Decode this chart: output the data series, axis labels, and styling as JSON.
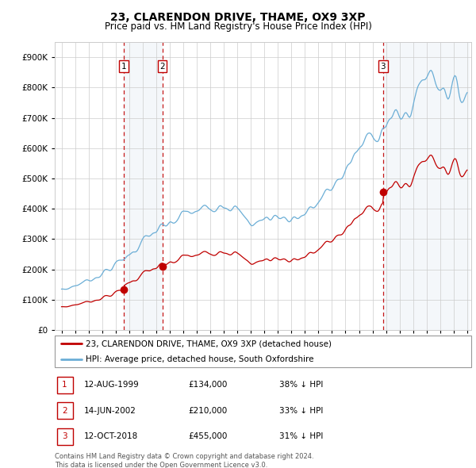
{
  "title": "23, CLARENDON DRIVE, THAME, OX9 3XP",
  "subtitle": "Price paid vs. HM Land Registry's House Price Index (HPI)",
  "ylim": [
    0,
    950000
  ],
  "yticks": [
    0,
    100000,
    200000,
    300000,
    400000,
    500000,
    600000,
    700000,
    800000,
    900000
  ],
  "ytick_labels": [
    "£0",
    "£100K",
    "£200K",
    "£300K",
    "£400K",
    "£500K",
    "£600K",
    "£700K",
    "£800K",
    "£900K"
  ],
  "sale_dates": [
    1999.61,
    2002.45,
    2018.78
  ],
  "sale_prices": [
    134000,
    210000,
    455000
  ],
  "sale_labels": [
    "1",
    "2",
    "3"
  ],
  "hpi_color": "#6baed6",
  "sale_color": "#c00000",
  "vline_color": "#c00000",
  "shade_color": "#dce6f1",
  "grid_color": "#cccccc",
  "legend_entries": [
    "23, CLARENDON DRIVE, THAME, OX9 3XP (detached house)",
    "HPI: Average price, detached house, South Oxfordshire"
  ],
  "table_data": [
    [
      "1",
      "12-AUG-1999",
      "£134,000",
      "38% ↓ HPI"
    ],
    [
      "2",
      "14-JUN-2002",
      "£210,000",
      "33% ↓ HPI"
    ],
    [
      "3",
      "12-OCT-2018",
      "£455,000",
      "31% ↓ HPI"
    ]
  ],
  "footer": "Contains HM Land Registry data © Crown copyright and database right 2024.\nThis data is licensed under the Open Government Licence v3.0."
}
